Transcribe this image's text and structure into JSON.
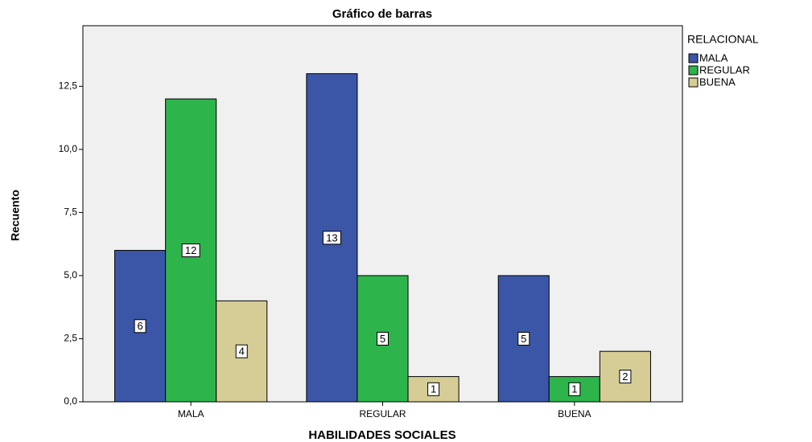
{
  "chart_data": {
    "type": "bar",
    "title": "Gráfico de barras",
    "x_label": "HABILIDADES SOCIALES",
    "y_label": "Recuento",
    "legend_title": "RELACIONAL",
    "legend_position": "right",
    "categories": [
      "MALA",
      "REGULAR",
      "BUENA"
    ],
    "series": [
      {
        "name": "MALA",
        "color": "#3b55a7",
        "values": [
          6,
          13,
          5
        ]
      },
      {
        "name": "REGULAR",
        "color": "#2db44b",
        "values": [
          12,
          5,
          1
        ]
      },
      {
        "name": "BUENA",
        "color": "#d6cd96",
        "values": [
          4,
          1,
          2
        ]
      }
    ],
    "ylim": [
      0,
      14.9
    ],
    "yticks": [
      {
        "value": 0,
        "label": "0,0"
      },
      {
        "value": 2.5,
        "label": "2,5"
      },
      {
        "value": 5,
        "label": "5,0"
      },
      {
        "value": 7.5,
        "label": "7,5"
      },
      {
        "value": 10,
        "label": "10,0"
      },
      {
        "value": 12.5,
        "label": "12,5"
      }
    ],
    "grid": false
  }
}
